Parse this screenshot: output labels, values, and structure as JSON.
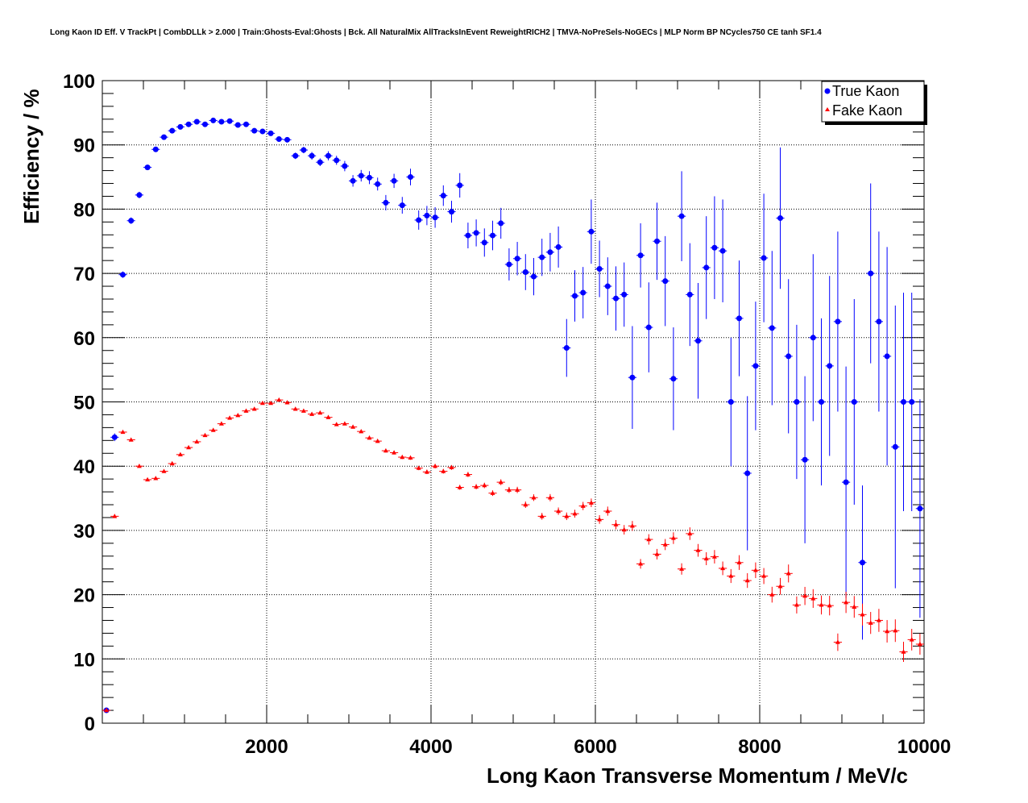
{
  "chart_data": {
    "type": "scatter",
    "title": "Long Kaon ID Eff. V TrackPt | CombDLLk > 2.000 | Train:Ghosts-Eval:Ghosts | Bck. All NaturalMix AllTracksInEvent ReweightRICH2 | TMVA-NoPreSels-NoGECs | MLP Norm BP NCycles750 CE tanh SF1.4",
    "xlabel": "Long Kaon Transverse Momentum / MeV/c",
    "ylabel": "Efficiency / %",
    "xlim": [
      0,
      10000
    ],
    "ylim": [
      0,
      100
    ],
    "x_ticks": [
      "2000",
      "4000",
      "6000",
      "8000",
      "10000"
    ],
    "y_ticks": [
      "0",
      "10",
      "20",
      "30",
      "40",
      "50",
      "60",
      "70",
      "80",
      "90",
      "100"
    ],
    "grid": true,
    "legend_position": "top-right",
    "bin_width": 100,
    "series": [
      {
        "name": "True Kaon",
        "color": "#0000ff",
        "marker": "circle",
        "x": [
          50,
          150,
          250,
          350,
          450,
          550,
          650,
          750,
          850,
          950,
          1050,
          1150,
          1250,
          1350,
          1450,
          1550,
          1650,
          1750,
          1850,
          1950,
          2050,
          2150,
          2250,
          2350,
          2450,
          2550,
          2650,
          2750,
          2850,
          2950,
          3050,
          3150,
          3250,
          3350,
          3450,
          3550,
          3650,
          3750,
          3850,
          3950,
          4050,
          4150,
          4250,
          4350,
          4450,
          4550,
          4650,
          4750,
          4850,
          4950,
          5050,
          5150,
          5250,
          5350,
          5450,
          5550,
          5650,
          5750,
          5850,
          5950,
          6050,
          6150,
          6250,
          6350,
          6450,
          6550,
          6650,
          6750,
          6850,
          6950,
          7050,
          7150,
          7250,
          7350,
          7450,
          7550,
          7650,
          7750,
          7850,
          7950,
          8050,
          8150,
          8250,
          8350,
          8450,
          8550,
          8650,
          8750,
          8850,
          8950,
          9050,
          9150,
          9250,
          9350,
          9450,
          9550,
          9650,
          9750,
          9850,
          9950
        ],
        "y": [
          2.0,
          44.5,
          69.8,
          78.2,
          82.2,
          86.5,
          89.3,
          91.2,
          92.2,
          92.8,
          93.2,
          93.6,
          93.2,
          93.8,
          93.6,
          93.7,
          93.1,
          93.2,
          92.2,
          92.1,
          91.8,
          90.9,
          90.8,
          88.3,
          89.2,
          88.3,
          87.3,
          88.3,
          87.6,
          86.7,
          84.4,
          85.2,
          84.9,
          83.9,
          81.0,
          84.4,
          80.6,
          85.0,
          78.3,
          79.0,
          78.7,
          82.1,
          79.6,
          83.7,
          75.9,
          76.3,
          74.8,
          75.9,
          77.8,
          71.4,
          72.3,
          70.2,
          69.5,
          72.5,
          73.3,
          74.1,
          58.4,
          66.5,
          67.0,
          76.5,
          70.7,
          68.0,
          66.1,
          66.7,
          53.8,
          72.8,
          61.6,
          75.0,
          68.8,
          53.6,
          78.9,
          66.7,
          59.5,
          70.9,
          74.0,
          73.5,
          50.0,
          63.0,
          38.9,
          55.6,
          72.4,
          61.5,
          78.6,
          57.1,
          50.0,
          41.0,
          60.0,
          50.0,
          55.6,
          62.5,
          37.5,
          50.0,
          25.0,
          70.0,
          62.5,
          57.1,
          43.0,
          50.0,
          50.0,
          33.4
        ],
        "err": [
          0.3,
          0.6,
          0.5,
          0.5,
          0.5,
          0.4,
          0.4,
          0.3,
          0.3,
          0.3,
          0.3,
          0.3,
          0.3,
          0.3,
          0.3,
          0.3,
          0.3,
          0.3,
          0.3,
          0.3,
          0.4,
          0.4,
          0.4,
          0.5,
          0.5,
          0.6,
          0.6,
          0.7,
          0.7,
          0.8,
          0.9,
          0.9,
          1.0,
          1.0,
          1.2,
          1.1,
          1.3,
          1.3,
          1.5,
          1.5,
          1.6,
          1.6,
          1.7,
          1.9,
          2.0,
          2.1,
          2.2,
          2.3,
          2.4,
          2.5,
          2.6,
          2.8,
          2.9,
          2.9,
          3.0,
          3.2,
          4.5,
          4.0,
          4.0,
          5.0,
          4.4,
          4.5,
          5.0,
          5.0,
          8.0,
          5.0,
          7.0,
          6.0,
          7.0,
          8.0,
          7.0,
          8.0,
          9.0,
          8.0,
          8.0,
          8.0,
          10.0,
          9.0,
          12.0,
          10.0,
          10.0,
          12.0,
          11.0,
          12.0,
          12.0,
          13.0,
          13.0,
          13.0,
          14.0,
          14.0,
          18.0,
          16.0,
          12.0,
          14.0,
          14.0,
          17.0,
          22.0,
          17.0,
          17.0,
          17.0
        ]
      },
      {
        "name": "Fake Kaon",
        "color": "#ff0000",
        "marker": "triangle",
        "x": [
          50,
          150,
          250,
          350,
          450,
          550,
          650,
          750,
          850,
          950,
          1050,
          1150,
          1250,
          1350,
          1450,
          1550,
          1650,
          1750,
          1850,
          1950,
          2050,
          2150,
          2250,
          2350,
          2450,
          2550,
          2650,
          2750,
          2850,
          2950,
          3050,
          3150,
          3250,
          3350,
          3450,
          3550,
          3650,
          3750,
          3850,
          3950,
          4050,
          4150,
          4250,
          4350,
          4450,
          4550,
          4650,
          4750,
          4850,
          4950,
          5050,
          5150,
          5250,
          5350,
          5450,
          5550,
          5650,
          5750,
          5850,
          5950,
          6050,
          6150,
          6250,
          6350,
          6450,
          6550,
          6650,
          6750,
          6850,
          6950,
          7050,
          7150,
          7250,
          7350,
          7450,
          7550,
          7650,
          7750,
          7850,
          7950,
          8050,
          8150,
          8250,
          8350,
          8450,
          8550,
          8650,
          8750,
          8850,
          8950,
          9050,
          9150,
          9250,
          9350,
          9450,
          9550,
          9650,
          9750,
          9850,
          9950
        ],
        "y": [
          2.0,
          32.2,
          45.3,
          44.1,
          40.0,
          37.9,
          38.1,
          39.2,
          40.4,
          41.8,
          42.9,
          43.8,
          44.8,
          45.6,
          46.6,
          47.5,
          47.9,
          48.6,
          48.9,
          49.8,
          49.8,
          50.3,
          49.9,
          48.9,
          48.6,
          48.1,
          48.3,
          47.6,
          46.5,
          46.6,
          46.1,
          45.4,
          44.4,
          43.9,
          42.4,
          42.1,
          41.4,
          41.3,
          39.7,
          39.1,
          40.0,
          39.2,
          39.8,
          36.7,
          38.7,
          36.8,
          37.0,
          35.8,
          37.5,
          36.3,
          36.3,
          34.0,
          35.1,
          32.2,
          35.1,
          33.0,
          32.2,
          32.6,
          33.8,
          34.3,
          31.7,
          33.0,
          30.9,
          30.1,
          30.7,
          24.8,
          28.6,
          26.3,
          27.8,
          28.8,
          24.0,
          29.5,
          26.9,
          25.6,
          25.9,
          24.1,
          22.9,
          25.0,
          22.2,
          23.8,
          22.9,
          20.0,
          21.3,
          23.3,
          18.4,
          19.8,
          19.4,
          18.4,
          18.3,
          12.6,
          18.8,
          18.1,
          16.9,
          15.6,
          16.0,
          14.3,
          14.4,
          11.1,
          13.0,
          12.3
        ]
      }
    ]
  }
}
